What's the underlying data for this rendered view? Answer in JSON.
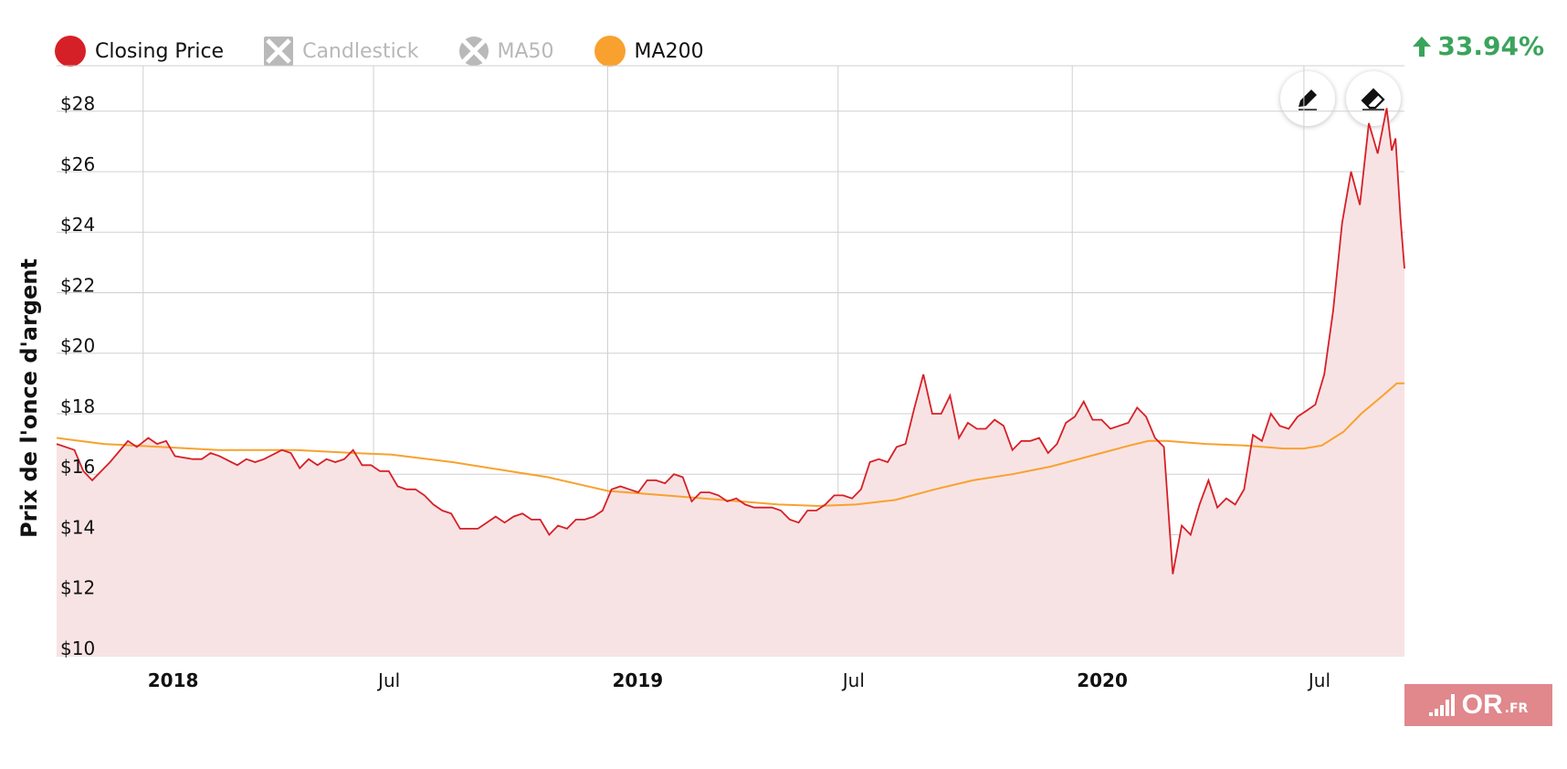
{
  "legend": [
    {
      "label": "Closing Price",
      "color": "#d62027",
      "enabled": true,
      "marker": "circle"
    },
    {
      "label": "Candlestick",
      "color": "#b9b9b9",
      "enabled": false,
      "marker": "square-x"
    },
    {
      "label": "MA50",
      "color": "#b9b9b9",
      "enabled": false,
      "marker": "circle-x"
    },
    {
      "label": "MA200",
      "color": "#f9a12e",
      "enabled": true,
      "marker": "circle"
    }
  ],
  "change": {
    "value": "33.94%",
    "direction": "up",
    "color": "#3aa45b",
    "icon": "arrow-up-icon"
  },
  "tools": {
    "draw_icon": "pencil-icon",
    "erase_icon": "eraser-icon"
  },
  "logo": {
    "text": "OR",
    "suffix": ".FR"
  },
  "chart_data": {
    "type": "line",
    "ylabel": "Prix de l'once d'argent",
    "xlabel": "",
    "ylim": [
      10,
      29.5
    ],
    "y_ticks": [
      10,
      12,
      14,
      16,
      18,
      20,
      22,
      24,
      26,
      28
    ],
    "y_tick_labels": [
      "$10",
      "$12",
      "$14",
      "$16",
      "$18",
      "$20",
      "$22",
      "$24",
      "$26",
      "$28"
    ],
    "x_range": [
      "2017-10-25",
      "2020-09-18"
    ],
    "x_ticks": [
      {
        "date": "2018-01-01",
        "label": "2018",
        "bold": true
      },
      {
        "date": "2018-07-01",
        "label": "Jul",
        "bold": false
      },
      {
        "date": "2019-01-01",
        "label": "2019",
        "bold": true
      },
      {
        "date": "2019-07-01",
        "label": "Jul",
        "bold": false
      },
      {
        "date": "2020-01-01",
        "label": "2020",
        "bold": true
      },
      {
        "date": "2020-07-01",
        "label": "Jul",
        "bold": false
      }
    ],
    "grid": true,
    "series": [
      {
        "name": "Closing Price",
        "color": "#d62027",
        "fill": "#f8e3e4",
        "points": [
          [
            "2017-10-25",
            17.0
          ],
          [
            "2017-11-08",
            16.8
          ],
          [
            "2017-11-15",
            16.1
          ],
          [
            "2017-11-22",
            15.8
          ],
          [
            "2017-12-06",
            16.4
          ],
          [
            "2017-12-20",
            17.1
          ],
          [
            "2017-12-27",
            16.9
          ],
          [
            "2018-01-05",
            17.2
          ],
          [
            "2018-01-12",
            17.0
          ],
          [
            "2018-01-19",
            17.1
          ],
          [
            "2018-01-26",
            16.6
          ],
          [
            "2018-02-09",
            16.5
          ],
          [
            "2018-02-16",
            16.5
          ],
          [
            "2018-02-23",
            16.7
          ],
          [
            "2018-03-02",
            16.6
          ],
          [
            "2018-03-16",
            16.3
          ],
          [
            "2018-03-23",
            16.5
          ],
          [
            "2018-03-30",
            16.4
          ],
          [
            "2018-04-06",
            16.5
          ],
          [
            "2018-04-20",
            16.8
          ],
          [
            "2018-04-27",
            16.7
          ],
          [
            "2018-05-04",
            16.2
          ],
          [
            "2018-05-11",
            16.5
          ],
          [
            "2018-05-18",
            16.3
          ],
          [
            "2018-05-25",
            16.5
          ],
          [
            "2018-06-01",
            16.4
          ],
          [
            "2018-06-08",
            16.5
          ],
          [
            "2018-06-15",
            16.8
          ],
          [
            "2018-06-22",
            16.3
          ],
          [
            "2018-06-29",
            16.3
          ],
          [
            "2018-07-06",
            16.1
          ],
          [
            "2018-07-13",
            16.1
          ],
          [
            "2018-07-20",
            15.6
          ],
          [
            "2018-07-27",
            15.5
          ],
          [
            "2018-08-03",
            15.5
          ],
          [
            "2018-08-10",
            15.3
          ],
          [
            "2018-08-17",
            15.0
          ],
          [
            "2018-08-24",
            14.8
          ],
          [
            "2018-08-31",
            14.7
          ],
          [
            "2018-09-07",
            14.2
          ],
          [
            "2018-09-14",
            14.2
          ],
          [
            "2018-09-21",
            14.2
          ],
          [
            "2018-09-28",
            14.4
          ],
          [
            "2018-10-05",
            14.6
          ],
          [
            "2018-10-12",
            14.4
          ],
          [
            "2018-10-19",
            14.6
          ],
          [
            "2018-10-26",
            14.7
          ],
          [
            "2018-11-02",
            14.5
          ],
          [
            "2018-11-09",
            14.5
          ],
          [
            "2018-11-16",
            14.0
          ],
          [
            "2018-11-23",
            14.3
          ],
          [
            "2018-11-30",
            14.2
          ],
          [
            "2018-12-07",
            14.5
          ],
          [
            "2018-12-14",
            14.5
          ],
          [
            "2018-12-21",
            14.6
          ],
          [
            "2018-12-28",
            14.8
          ],
          [
            "2019-01-04",
            15.5
          ],
          [
            "2019-01-11",
            15.6
          ],
          [
            "2019-01-18",
            15.5
          ],
          [
            "2019-01-25",
            15.4
          ],
          [
            "2019-02-01",
            15.8
          ],
          [
            "2019-02-08",
            15.8
          ],
          [
            "2019-02-15",
            15.7
          ],
          [
            "2019-02-22",
            16.0
          ],
          [
            "2019-03-01",
            15.9
          ],
          [
            "2019-03-08",
            15.1
          ],
          [
            "2019-03-15",
            15.4
          ],
          [
            "2019-03-22",
            15.4
          ],
          [
            "2019-03-29",
            15.3
          ],
          [
            "2019-04-05",
            15.1
          ],
          [
            "2019-04-12",
            15.2
          ],
          [
            "2019-04-19",
            15.0
          ],
          [
            "2019-04-26",
            14.9
          ],
          [
            "2019-05-03",
            14.9
          ],
          [
            "2019-05-10",
            14.9
          ],
          [
            "2019-05-17",
            14.8
          ],
          [
            "2019-05-24",
            14.5
          ],
          [
            "2019-05-31",
            14.4
          ],
          [
            "2019-06-07",
            14.8
          ],
          [
            "2019-06-14",
            14.8
          ],
          [
            "2019-06-21",
            15.0
          ],
          [
            "2019-06-28",
            15.3
          ],
          [
            "2019-07-05",
            15.3
          ],
          [
            "2019-07-12",
            15.2
          ],
          [
            "2019-07-19",
            15.5
          ],
          [
            "2019-07-26",
            16.4
          ],
          [
            "2019-08-02",
            16.5
          ],
          [
            "2019-08-09",
            16.4
          ],
          [
            "2019-08-16",
            16.9
          ],
          [
            "2019-08-23",
            17.0
          ],
          [
            "2019-08-30",
            18.2
          ],
          [
            "2019-09-06",
            19.3
          ],
          [
            "2019-09-13",
            18.0
          ],
          [
            "2019-09-20",
            18.0
          ],
          [
            "2019-09-27",
            18.6
          ],
          [
            "2019-10-04",
            17.2
          ],
          [
            "2019-10-11",
            17.7
          ],
          [
            "2019-10-18",
            17.5
          ],
          [
            "2019-10-25",
            17.5
          ],
          [
            "2019-11-01",
            17.8
          ],
          [
            "2019-11-08",
            17.6
          ],
          [
            "2019-11-15",
            16.8
          ],
          [
            "2019-11-22",
            17.1
          ],
          [
            "2019-11-29",
            17.1
          ],
          [
            "2019-12-06",
            17.2
          ],
          [
            "2019-12-13",
            16.7
          ],
          [
            "2019-12-20",
            17.0
          ],
          [
            "2019-12-27",
            17.7
          ],
          [
            "2020-01-03",
            17.9
          ],
          [
            "2020-01-10",
            18.4
          ],
          [
            "2020-01-17",
            17.8
          ],
          [
            "2020-01-24",
            17.8
          ],
          [
            "2020-01-31",
            17.5
          ],
          [
            "2020-02-07",
            17.6
          ],
          [
            "2020-02-14",
            17.7
          ],
          [
            "2020-02-21",
            18.2
          ],
          [
            "2020-02-28",
            17.9
          ],
          [
            "2020-03-06",
            17.2
          ],
          [
            "2020-03-13",
            16.9
          ],
          [
            "2020-03-20",
            12.7
          ],
          [
            "2020-03-27",
            14.3
          ],
          [
            "2020-04-03",
            14.0
          ],
          [
            "2020-04-10",
            15.0
          ],
          [
            "2020-04-17",
            15.8
          ],
          [
            "2020-04-24",
            14.9
          ],
          [
            "2020-05-01",
            15.2
          ],
          [
            "2020-05-08",
            15.0
          ],
          [
            "2020-05-15",
            15.5
          ],
          [
            "2020-05-22",
            17.3
          ],
          [
            "2020-05-29",
            17.1
          ],
          [
            "2020-06-05",
            18.0
          ],
          [
            "2020-06-12",
            17.6
          ],
          [
            "2020-06-19",
            17.5
          ],
          [
            "2020-06-26",
            17.9
          ],
          [
            "2020-07-03",
            18.1
          ],
          [
            "2020-07-10",
            18.3
          ],
          [
            "2020-07-17",
            19.3
          ],
          [
            "2020-07-24",
            21.4
          ],
          [
            "2020-07-31",
            24.3
          ],
          [
            "2020-08-07",
            26.0
          ],
          [
            "2020-08-14",
            24.9
          ],
          [
            "2020-08-21",
            27.6
          ],
          [
            "2020-08-28",
            26.6
          ],
          [
            "2020-09-04",
            28.1
          ],
          [
            "2020-09-08",
            26.7
          ],
          [
            "2020-09-11",
            27.1
          ],
          [
            "2020-09-15",
            24.4
          ],
          [
            "2020-09-18",
            22.8
          ]
        ]
      },
      {
        "name": "MA200",
        "color": "#f9a12e",
        "points": [
          [
            "2017-10-25",
            17.2
          ],
          [
            "2017-12-01",
            17.0
          ],
          [
            "2018-01-15",
            16.9
          ],
          [
            "2018-03-01",
            16.8
          ],
          [
            "2018-05-01",
            16.8
          ],
          [
            "2018-06-15",
            16.7
          ],
          [
            "2018-07-15",
            16.65
          ],
          [
            "2018-09-01",
            16.4
          ],
          [
            "2018-10-01",
            16.2
          ],
          [
            "2018-11-15",
            15.9
          ],
          [
            "2019-01-01",
            15.45
          ],
          [
            "2019-02-15",
            15.3
          ],
          [
            "2019-04-01",
            15.15
          ],
          [
            "2019-05-15",
            15.0
          ],
          [
            "2019-06-15",
            14.95
          ],
          [
            "2019-07-15",
            15.0
          ],
          [
            "2019-08-15",
            15.15
          ],
          [
            "2019-09-15",
            15.5
          ],
          [
            "2019-10-15",
            15.8
          ],
          [
            "2019-11-15",
            16.0
          ],
          [
            "2019-12-15",
            16.25
          ],
          [
            "2020-01-15",
            16.6
          ],
          [
            "2020-02-15",
            16.95
          ],
          [
            "2020-03-01",
            17.1
          ],
          [
            "2020-03-15",
            17.1
          ],
          [
            "2020-04-15",
            17.0
          ],
          [
            "2020-05-15",
            16.95
          ],
          [
            "2020-06-15",
            16.85
          ],
          [
            "2020-07-01",
            16.85
          ],
          [
            "2020-07-15",
            16.95
          ],
          [
            "2020-08-01",
            17.4
          ],
          [
            "2020-08-15",
            18.0
          ],
          [
            "2020-09-01",
            18.6
          ],
          [
            "2020-09-12",
            19.0
          ],
          [
            "2020-09-18",
            19.0
          ]
        ]
      }
    ]
  }
}
